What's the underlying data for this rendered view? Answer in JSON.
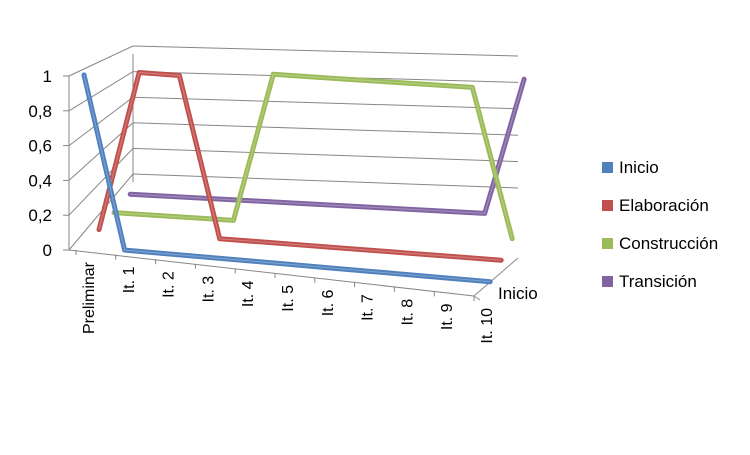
{
  "chart_data": {
    "type": "line",
    "subtype": "3d-line",
    "title": "",
    "categories": [
      "Preliminar",
      "It. 1",
      "It. 2",
      "It. 3",
      "It. 4",
      "It. 5",
      "It. 6",
      "It. 7",
      "It. 8",
      "It. 9",
      "It. 10"
    ],
    "depth_categories": [
      "Inicio"
    ],
    "y_ticks": [
      "0",
      "0,2",
      "0,4",
      "0,6",
      "0,8",
      "1"
    ],
    "ylim": [
      0,
      1
    ],
    "grid": true,
    "legend_position": "right",
    "series": [
      {
        "name": "Inicio",
        "color": "#4f81bd",
        "values": [
          1,
          0,
          0,
          0,
          0,
          0,
          0,
          0,
          0,
          0,
          0
        ]
      },
      {
        "name": "Elaboración",
        "color": "#c0504d",
        "values": [
          0,
          1,
          1,
          0,
          0,
          0,
          0,
          0,
          0,
          0,
          0
        ]
      },
      {
        "name": "Construcción",
        "color": "#9bbb59",
        "values": [
          0,
          0,
          0,
          0,
          1,
          1,
          1,
          1,
          1,
          1,
          0
        ]
      },
      {
        "name": "Transición",
        "color": "#8064a2",
        "values": [
          0,
          0,
          0,
          0,
          0,
          0,
          0,
          0,
          0,
          0,
          1
        ]
      }
    ]
  }
}
